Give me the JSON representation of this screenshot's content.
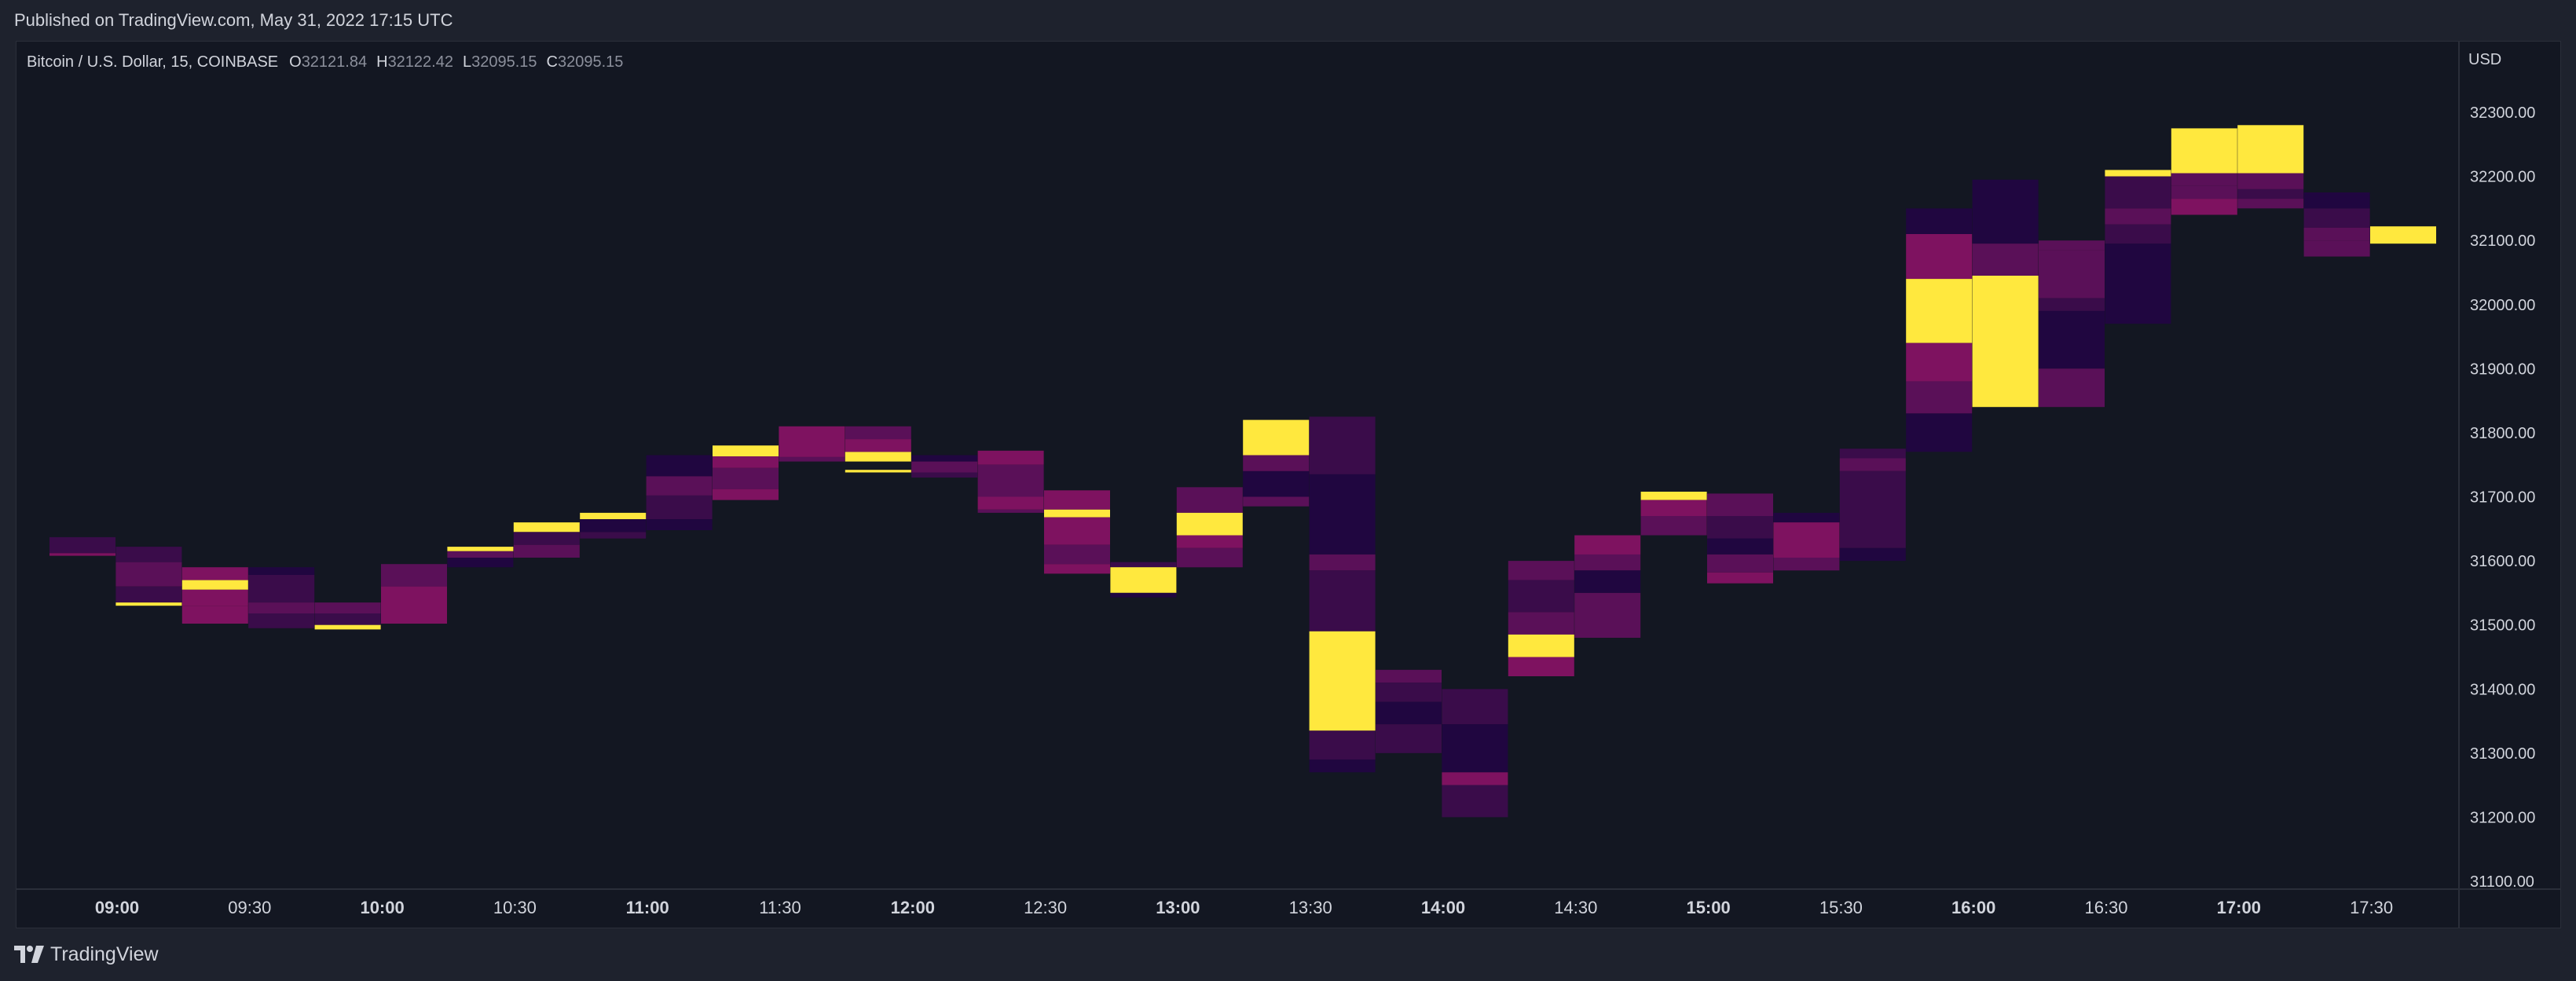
{
  "header": {
    "published_text": "Published on TradingView.com, May 31, 2022 17:15 UTC"
  },
  "legend": {
    "symbol": "Bitcoin / U.S. Dollar, 15, COINBASE",
    "o_label": "O",
    "o_value": "32121.84",
    "h_label": "H",
    "h_value": "32122.42",
    "l_label": "L",
    "l_value": "32095.15",
    "c_label": "C",
    "c_value": "32095.15"
  },
  "footer": {
    "brand": "TradingView",
    "logo_icon": "tradingview-logo-icon"
  },
  "colors": {
    "background": "#131722",
    "frame": "#1e222d",
    "text": "#d1d4dc",
    "palette": [
      "#0d0030",
      "#200640",
      "#3a0c4a",
      "#5a1058",
      "#7e1260",
      "#ffe83e"
    ]
  },
  "chart_data": {
    "type": "heatmap",
    "currency_label": "USD",
    "y_ticks": [
      "31100.00",
      "31200.00",
      "31300.00",
      "31400.00",
      "31500.00",
      "31600.00",
      "31700.00",
      "31800.00",
      "31900.00",
      "32000.00",
      "32100.00",
      "32200.00",
      "32300.00"
    ],
    "ylim": [
      31100,
      32300
    ],
    "x_ticks": [
      {
        "label": "09:00",
        "bold": true
      },
      {
        "label": "09:30",
        "bold": false
      },
      {
        "label": "10:00",
        "bold": true
      },
      {
        "label": "10:30",
        "bold": false
      },
      {
        "label": "11:00",
        "bold": true
      },
      {
        "label": "11:30",
        "bold": false
      },
      {
        "label": "12:00",
        "bold": true
      },
      {
        "label": "12:30",
        "bold": false
      },
      {
        "label": "13:00",
        "bold": true
      },
      {
        "label": "13:30",
        "bold": false
      },
      {
        "label": "14:00",
        "bold": true
      },
      {
        "label": "14:30",
        "bold": false
      },
      {
        "label": "15:00",
        "bold": true
      },
      {
        "label": "15:30",
        "bold": false
      },
      {
        "label": "16:00",
        "bold": true
      },
      {
        "label": "16:30",
        "bold": false
      },
      {
        "label": "17:00",
        "bold": true
      },
      {
        "label": "17:30",
        "bold": false
      }
    ],
    "columns": [
      {
        "time": "08:45",
        "segments": [
          [
            31612,
            31637,
            2
          ],
          [
            31608,
            31612,
            4
          ]
        ]
      },
      {
        "time": "09:00",
        "segments": [
          [
            31598,
            31622,
            2
          ],
          [
            31560,
            31598,
            3
          ],
          [
            31535,
            31560,
            2
          ],
          [
            31530,
            31535,
            5
          ]
        ]
      },
      {
        "time": "09:15",
        "segments": [
          [
            31570,
            31590,
            4
          ],
          [
            31555,
            31570,
            5
          ],
          [
            31530,
            31555,
            4
          ],
          [
            31502,
            31530,
            4
          ]
        ]
      },
      {
        "time": "09:30",
        "segments": [
          [
            31578,
            31590,
            1
          ],
          [
            31535,
            31578,
            2
          ],
          [
            31518,
            31535,
            3
          ],
          [
            31495,
            31518,
            2
          ]
        ]
      },
      {
        "time": "09:45",
        "segments": [
          [
            31518,
            31535,
            3
          ],
          [
            31500,
            31518,
            2
          ],
          [
            31493,
            31500,
            5
          ]
        ]
      },
      {
        "time": "10:00",
        "segments": [
          [
            31560,
            31595,
            3
          ],
          [
            31502,
            31560,
            4
          ]
        ]
      },
      {
        "time": "10:15",
        "segments": [
          [
            31615,
            31622,
            5
          ],
          [
            31605,
            31615,
            3
          ],
          [
            31590,
            31605,
            1
          ]
        ]
      },
      {
        "time": "10:30",
        "segments": [
          [
            31645,
            31660,
            5
          ],
          [
            31625,
            31645,
            2
          ],
          [
            31605,
            31625,
            3
          ]
        ]
      },
      {
        "time": "10:45",
        "segments": [
          [
            31665,
            31675,
            5
          ],
          [
            31645,
            31665,
            1
          ],
          [
            31635,
            31645,
            2
          ]
        ]
      },
      {
        "time": "11:00",
        "segments": [
          [
            31732,
            31765,
            1
          ],
          [
            31702,
            31732,
            3
          ],
          [
            31665,
            31702,
            2
          ],
          [
            31648,
            31665,
            1
          ]
        ]
      },
      {
        "time": "11:15",
        "segments": [
          [
            31763,
            31780,
            5
          ],
          [
            31745,
            31763,
            4
          ],
          [
            31712,
            31745,
            3
          ],
          [
            31695,
            31712,
            4
          ]
        ]
      },
      {
        "time": "11:30",
        "segments": [
          [
            31795,
            31810,
            4
          ],
          [
            31762,
            31795,
            4
          ],
          [
            31755,
            31762,
            3
          ]
        ]
      },
      {
        "time": "11:45",
        "segments": [
          [
            31790,
            31810,
            3
          ],
          [
            31770,
            31790,
            4
          ],
          [
            31755,
            31770,
            5
          ],
          [
            31738,
            31742,
            5
          ]
        ]
      },
      {
        "time": "12:00",
        "segments": [
          [
            31755,
            31765,
            1
          ],
          [
            31738,
            31755,
            3
          ],
          [
            31730,
            31738,
            2
          ]
        ]
      },
      {
        "time": "12:15",
        "segments": [
          [
            31750,
            31772,
            4
          ],
          [
            31700,
            31750,
            3
          ],
          [
            31680,
            31700,
            4
          ],
          [
            31675,
            31680,
            3
          ]
        ]
      },
      {
        "time": "12:30",
        "segments": [
          [
            31680,
            31710,
            4
          ],
          [
            31668,
            31680,
            5
          ],
          [
            31625,
            31668,
            4
          ],
          [
            31595,
            31625,
            3
          ],
          [
            31580,
            31595,
            4
          ]
        ]
      },
      {
        "time": "12:45",
        "segments": [
          [
            31590,
            31598,
            2
          ],
          [
            31550,
            31590,
            5
          ],
          [
            31543,
            31550,
            1
          ]
        ]
      },
      {
        "time": "13:00",
        "segments": [
          [
            31675,
            31715,
            3
          ],
          [
            31640,
            31675,
            5
          ],
          [
            31620,
            31640,
            4
          ],
          [
            31590,
            31620,
            3
          ]
        ]
      },
      {
        "time": "13:15",
        "segments": [
          [
            31765,
            31820,
            5
          ],
          [
            31740,
            31765,
            3
          ],
          [
            31700,
            31740,
            1
          ],
          [
            31685,
            31700,
            3
          ]
        ]
      },
      {
        "time": "13:30",
        "segments": [
          [
            31735,
            31825,
            2
          ],
          [
            31610,
            31735,
            1
          ],
          [
            31585,
            31610,
            3
          ],
          [
            31490,
            31585,
            2
          ],
          [
            31335,
            31490,
            5
          ],
          [
            31290,
            31335,
            2
          ],
          [
            31270,
            31290,
            1
          ]
        ]
      },
      {
        "time": "13:45",
        "segments": [
          [
            31410,
            31430,
            3
          ],
          [
            31380,
            31410,
            2
          ],
          [
            31345,
            31380,
            1
          ],
          [
            31300,
            31345,
            2
          ]
        ]
      },
      {
        "time": "14:00",
        "segments": [
          [
            31345,
            31400,
            2
          ],
          [
            31270,
            31345,
            1
          ],
          [
            31250,
            31270,
            4
          ],
          [
            31200,
            31250,
            2
          ]
        ]
      },
      {
        "time": "14:15",
        "segments": [
          [
            31570,
            31600,
            3
          ],
          [
            31520,
            31570,
            2
          ],
          [
            31485,
            31520,
            3
          ],
          [
            31450,
            31485,
            5
          ],
          [
            31420,
            31450,
            4
          ]
        ]
      },
      {
        "time": "14:30",
        "segments": [
          [
            31610,
            31640,
            4
          ],
          [
            31585,
            31610,
            3
          ],
          [
            31550,
            31585,
            1
          ],
          [
            31480,
            31550,
            3
          ]
        ]
      },
      {
        "time": "14:45",
        "segments": [
          [
            31695,
            31708,
            5
          ],
          [
            31670,
            31695,
            4
          ],
          [
            31640,
            31670,
            3
          ]
        ]
      },
      {
        "time": "15:00",
        "segments": [
          [
            31670,
            31705,
            3
          ],
          [
            31635,
            31670,
            2
          ],
          [
            31610,
            31635,
            1
          ],
          [
            31582,
            31610,
            3
          ],
          [
            31565,
            31582,
            4
          ]
        ]
      },
      {
        "time": "15:15",
        "segments": [
          [
            31660,
            31675,
            1
          ],
          [
            31605,
            31660,
            4
          ],
          [
            31585,
            31605,
            3
          ]
        ]
      },
      {
        "time": "15:30",
        "segments": [
          [
            31760,
            31775,
            2
          ],
          [
            31740,
            31760,
            3
          ],
          [
            31620,
            31740,
            2
          ],
          [
            31600,
            31620,
            1
          ]
        ]
      },
      {
        "time": "15:45",
        "segments": [
          [
            32110,
            32150,
            1
          ],
          [
            32040,
            32110,
            4
          ],
          [
            31940,
            32040,
            5
          ],
          [
            31880,
            31940,
            4
          ],
          [
            31830,
            31880,
            3
          ],
          [
            31770,
            31830,
            1
          ]
        ]
      },
      {
        "time": "16:00",
        "segments": [
          [
            32095,
            32195,
            1
          ],
          [
            32045,
            32095,
            3
          ],
          [
            31840,
            32045,
            5
          ]
        ]
      },
      {
        "time": "16:15",
        "segments": [
          [
            32085,
            32100,
            3
          ],
          [
            32010,
            32085,
            3
          ],
          [
            31990,
            32010,
            2
          ],
          [
            31900,
            31990,
            1
          ],
          [
            31840,
            31900,
            3
          ]
        ]
      },
      {
        "time": "16:30",
        "segments": [
          [
            32200,
            32210,
            5
          ],
          [
            32150,
            32200,
            2
          ],
          [
            32125,
            32150,
            3
          ],
          [
            32095,
            32125,
            2
          ],
          [
            31970,
            32095,
            1
          ]
        ]
      },
      {
        "time": "16:45",
        "segments": [
          [
            32205,
            32275,
            5
          ],
          [
            32185,
            32205,
            3
          ],
          [
            32165,
            32185,
            3
          ],
          [
            32140,
            32165,
            4
          ]
        ]
      },
      {
        "time": "17:00",
        "segments": [
          [
            32205,
            32280,
            5
          ],
          [
            32180,
            32205,
            3
          ],
          [
            32165,
            32180,
            2
          ],
          [
            32150,
            32165,
            3
          ]
        ]
      },
      {
        "time": "17:15",
        "segments": [
          [
            32150,
            32175,
            1
          ],
          [
            32120,
            32150,
            2
          ],
          [
            32100,
            32120,
            3
          ],
          [
            32075,
            32100,
            3
          ]
        ]
      },
      {
        "time": "17:30",
        "segments": [
          [
            32095,
            32122,
            5
          ]
        ]
      }
    ]
  }
}
